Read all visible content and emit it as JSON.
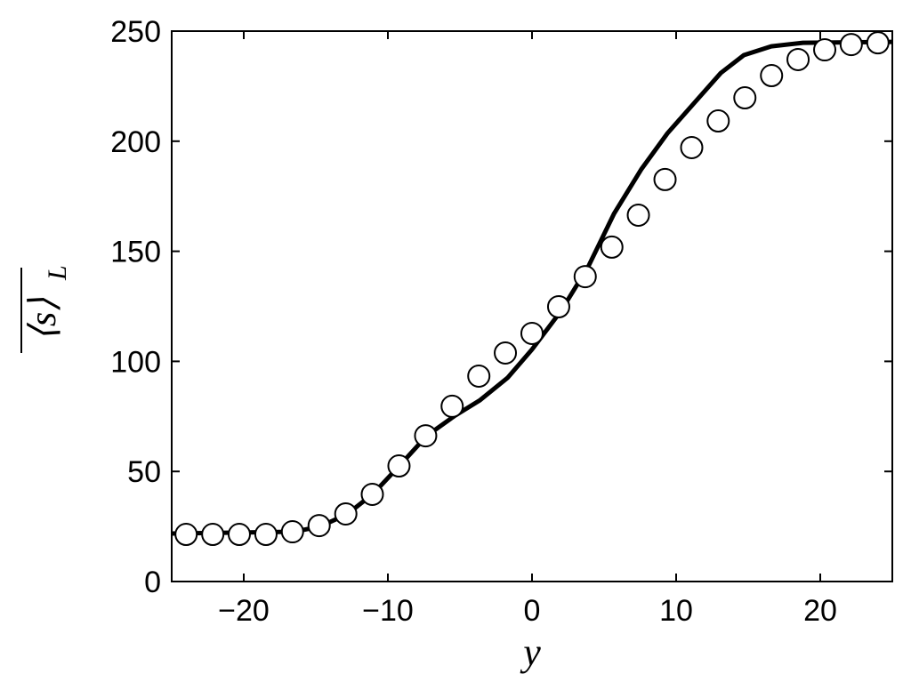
{
  "chart_data": {
    "type": "line",
    "xlabel": "y",
    "ylabel": {
      "text": "⟨s⟩",
      "subscript": "L"
    },
    "xlim": [
      -25,
      25
    ],
    "ylim": [
      0,
      250
    ],
    "xticks": [
      {
        "value": -20,
        "label": "−20"
      },
      {
        "value": -10,
        "label": "−10"
      },
      0,
      10,
      20
    ],
    "yticks": [
      0,
      50,
      100,
      150,
      200,
      250
    ],
    "series": [
      {
        "mode": "line",
        "color": "#000000",
        "x": [
          -25.0,
          -16.5,
          -14.7,
          -12.8,
          -11.0,
          -9.1,
          -7.3,
          -5.4,
          -3.6,
          -1.7,
          0,
          2.0,
          3.9,
          5.7,
          7.6,
          9.4,
          11.3,
          13.1,
          14.7,
          16.6,
          18.8,
          25.0
        ],
        "values": [
          21.8,
          22.6,
          25.0,
          30.7,
          40.0,
          53.3,
          66.2,
          75.1,
          82.4,
          92.5,
          105.4,
          122.8,
          143.0,
          167.2,
          187.4,
          203.6,
          217.7,
          231.0,
          239.1,
          243.1,
          244.7,
          245.1
        ]
      },
      {
        "mode": "markers",
        "color": "#000000",
        "x": [
          -24.0,
          -22.15,
          -20.31,
          -18.46,
          -16.62,
          -14.77,
          -12.92,
          -11.08,
          -9.23,
          -7.38,
          -5.54,
          -3.69,
          -1.85,
          0,
          1.85,
          3.69,
          5.54,
          7.38,
          9.23,
          11.08,
          12.92,
          14.77,
          16.62,
          18.46,
          20.31,
          22.15,
          24.0
        ],
        "values": [
          21.4,
          21.4,
          21.4,
          21.4,
          22.6,
          25.4,
          30.7,
          39.6,
          52.5,
          66.2,
          79.6,
          93.3,
          103.8,
          112.7,
          124.8,
          138.5,
          151.9,
          166.4,
          182.6,
          197.1,
          209.2,
          219.7,
          229.8,
          237.1,
          241.5,
          243.9,
          244.7
        ]
      }
    ]
  }
}
